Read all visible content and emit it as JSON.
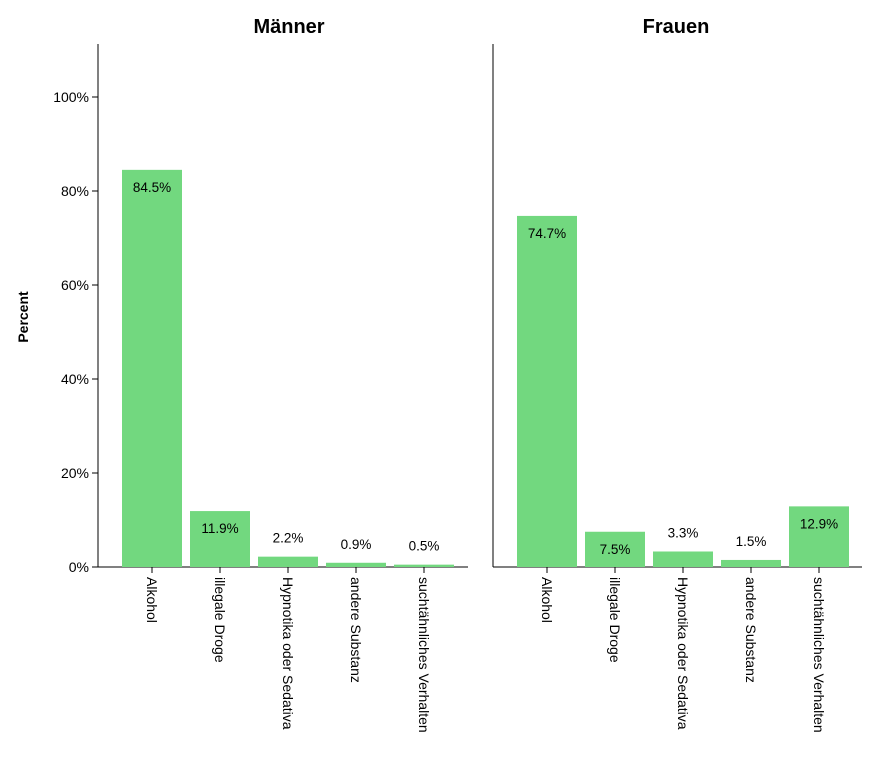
{
  "chart_data": {
    "type": "bar",
    "ylabel": "Percent",
    "ylim": [
      0,
      110
    ],
    "yticks": [
      0,
      20,
      40,
      60,
      80,
      100
    ],
    "ytick_labels": [
      "0%",
      "20%",
      "40%",
      "60%",
      "80%",
      "100%"
    ],
    "categories": [
      "Alkohol",
      "illegale Droge",
      "Hypnotika oder Sedativa",
      "andere Substanz",
      "suchtähnliches Verhalten"
    ],
    "bar_color": "#72d87f",
    "grid": false,
    "panels": [
      {
        "title": "Männer",
        "values": [
          84.5,
          11.9,
          2.2,
          0.9,
          0.5
        ],
        "value_labels": [
          "84.5%",
          "11.9%",
          "2.2%",
          "0.9%",
          "0.5%"
        ]
      },
      {
        "title": "Frauen",
        "values": [
          74.7,
          7.5,
          3.3,
          1.5,
          12.9
        ],
        "value_labels": [
          "74.7%",
          "7.5%",
          "3.3%",
          "1.5%",
          "12.9%"
        ]
      }
    ]
  }
}
